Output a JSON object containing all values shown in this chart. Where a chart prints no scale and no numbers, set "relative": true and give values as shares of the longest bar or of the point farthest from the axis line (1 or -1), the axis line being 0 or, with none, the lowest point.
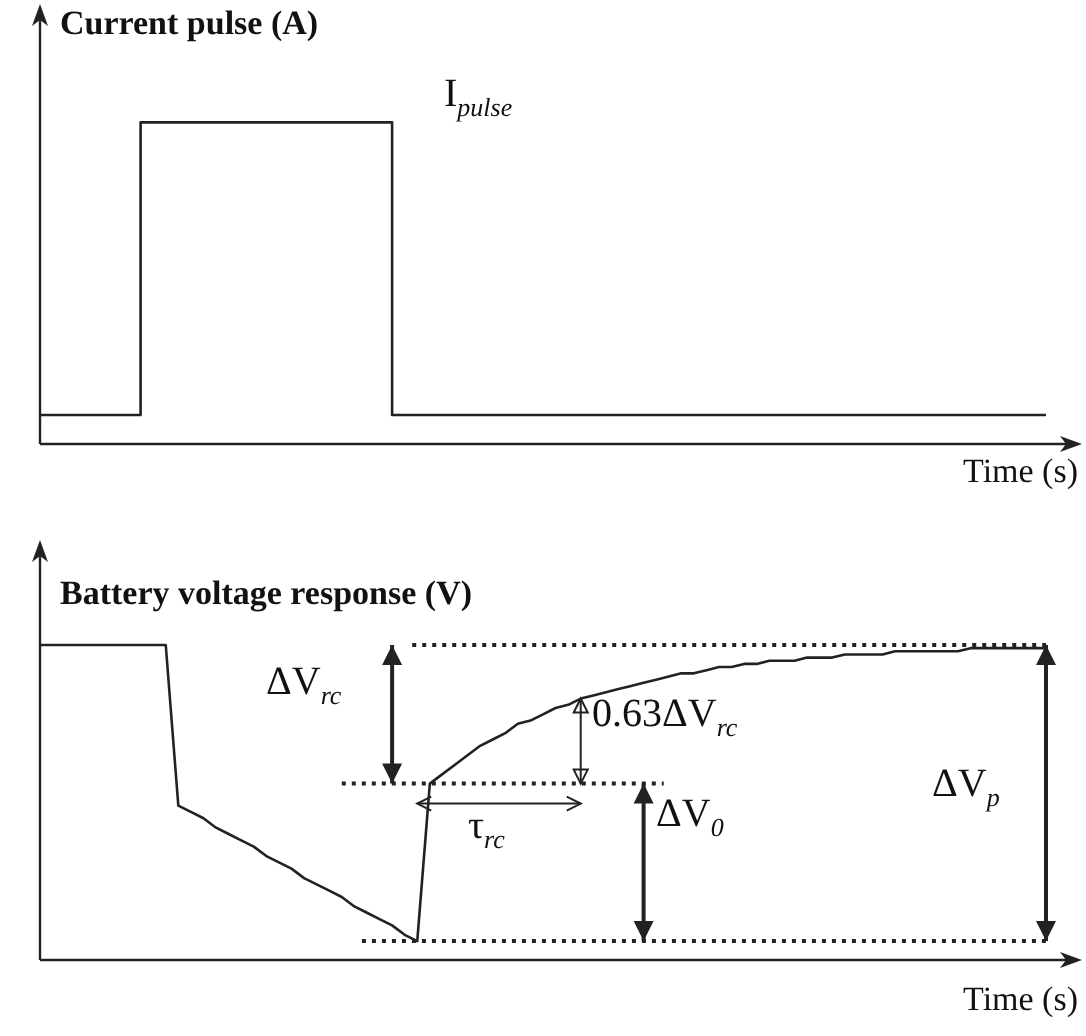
{
  "chart_data": [
    {
      "type": "step",
      "title": "Current pulse (A)",
      "xlabel": "Time (s)",
      "relative": true,
      "color": "#222222",
      "categories": [
        null,
        null,
        null,
        null,
        null,
        null,
        null,
        null,
        null,
        null,
        null,
        null,
        null,
        null,
        null,
        null,
        null,
        null,
        null,
        null,
        null,
        null,
        null,
        null,
        null,
        null,
        null,
        null,
        null,
        null,
        null,
        null,
        null,
        null,
        null,
        null,
        null,
        null,
        null,
        null,
        null
      ],
      "values": [
        0.09,
        0.09,
        0.09,
        0.09,
        0.09,
        1,
        1,
        1,
        1,
        1,
        1,
        1,
        1,
        1,
        1,
        0.09,
        0.09,
        0.09,
        0.09,
        0.09,
        0.09,
        0.09,
        0.09,
        0.09,
        0.09,
        0.09,
        0.09,
        0.09,
        0.09,
        0.09,
        0.09,
        0.09,
        0.09,
        0.09,
        0.09,
        0.09,
        0.09,
        0.09,
        0.09,
        0.09,
        0.09
      ],
      "annotations": [
        "I$_{pulse}$"
      ]
    },
    {
      "type": "line",
      "title": "Battery voltage response (V)",
      "xlabel": "Time (s)",
      "relative": true,
      "color": "#222222",
      "categories": [
        null,
        null,
        null,
        null,
        null,
        null,
        null,
        null,
        null,
        null,
        null,
        null,
        null,
        null,
        null,
        null,
        null,
        null,
        null,
        null,
        null,
        null,
        null,
        null,
        null,
        null,
        null,
        null,
        null,
        null,
        null,
        null,
        null,
        null,
        null,
        null,
        null,
        null,
        null,
        null,
        null,
        null,
        null,
        null,
        null,
        null,
        null,
        null,
        null,
        null,
        null,
        null,
        null,
        null,
        null,
        null,
        null,
        null,
        null,
        null,
        null,
        null,
        null,
        null,
        null,
        null,
        null,
        null,
        null,
        null,
        null,
        null,
        null,
        null,
        null,
        null,
        null,
        null,
        null,
        null,
        null
      ],
      "values": [
        1,
        1,
        1,
        1,
        1,
        1,
        1,
        1,
        1,
        1,
        1,
        0.49,
        0.47,
        0.45,
        0.42,
        0.4,
        0.38,
        0.36,
        0.33,
        0.31,
        0.29,
        0.26,
        0.24,
        0.22,
        0.2,
        0.17,
        0.15,
        0.13,
        0.11,
        0.08,
        0.06,
        0.56,
        0.59,
        0.62,
        0.65,
        0.68,
        0.7,
        0.72,
        0.75,
        0.76,
        0.78,
        0.8,
        0.81,
        0.83,
        0.84,
        0.85,
        0.86,
        0.87,
        0.88,
        0.89,
        0.9,
        0.91,
        0.91,
        0.92,
        0.93,
        0.93,
        0.94,
        0.94,
        0.95,
        0.95,
        0.95,
        0.96,
        0.96,
        0.96,
        0.97,
        0.97,
        0.97,
        0.97,
        0.98,
        0.98,
        0.98,
        0.98,
        0.98,
        0.98,
        0.99,
        0.99,
        0.99,
        0.99,
        0.99,
        0.99,
        0.99
      ],
      "ref_lines": [
        {
          "axis": "y",
          "value": 1,
          "line_style": "dotted"
        },
        {
          "axis": "y",
          "value": 0.56,
          "line_style": "dotted"
        },
        {
          "axis": "y",
          "value": 0.06,
          "line_style": "dotted"
        }
      ],
      "annotations": [
        "ΔV$_{rc}$",
        "0.63ΔV$_{rc}$",
        "τ$_{rc}$",
        "ΔV$_{0}$",
        "ΔV$_{p}$"
      ]
    }
  ]
}
